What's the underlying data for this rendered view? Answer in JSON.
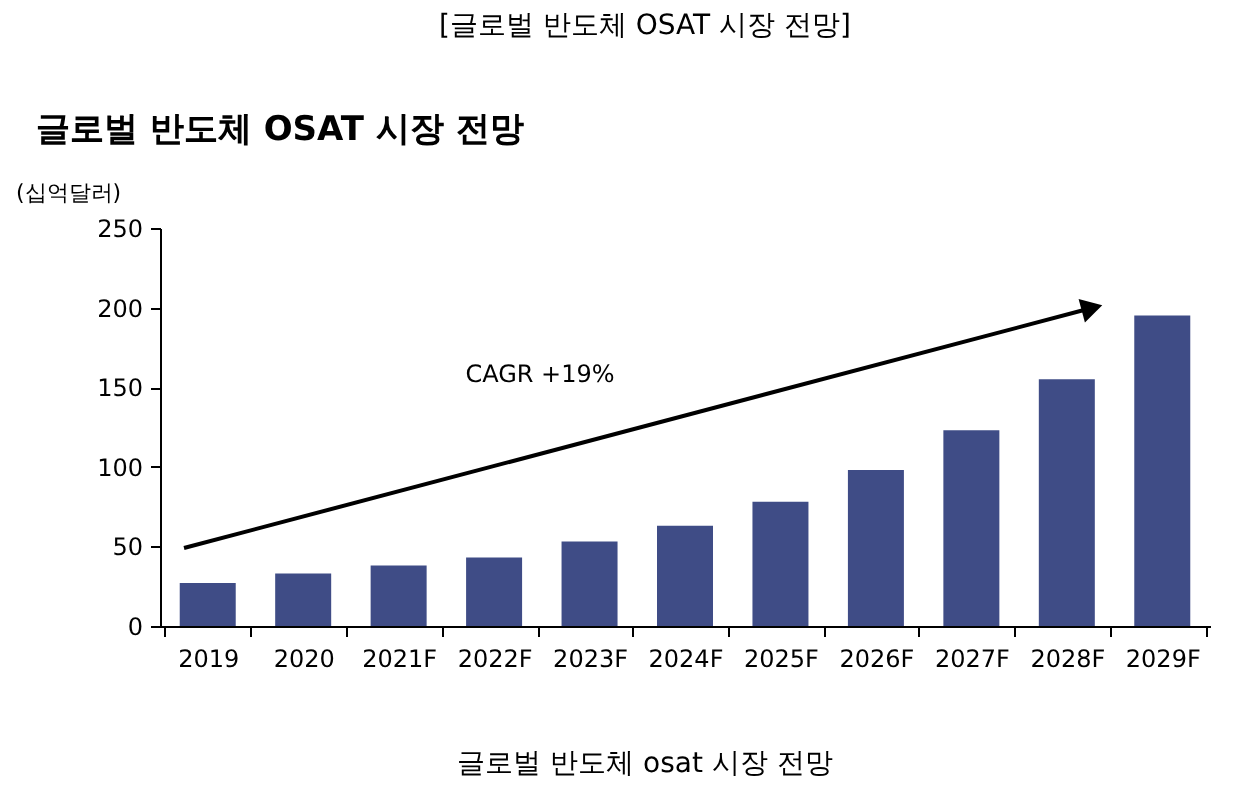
{
  "chart_data": {
    "type": "bar",
    "title": "글로벌 반도체 OSAT 시장 전망",
    "ylabel": "(십억달러)",
    "annotations": [
      "[글로벌 반도체 OSAT 시장 전망]",
      "CAGR +19%",
      "글로벌 반도체 osat 시장 전망"
    ],
    "categories": [
      "2019",
      "2020",
      "2021F",
      "2022F",
      "2023F",
      "2024F",
      "2025F",
      "2026F",
      "2027F",
      "2028F",
      "2029F"
    ],
    "values": [
      27,
      33,
      38,
      43,
      53,
      63,
      78,
      98,
      123,
      155,
      195
    ],
    "color": "#3f4c86",
    "ylim": [
      0,
      250
    ],
    "yticks": [
      0,
      50,
      100,
      150,
      200,
      250
    ],
    "grid": false
  }
}
